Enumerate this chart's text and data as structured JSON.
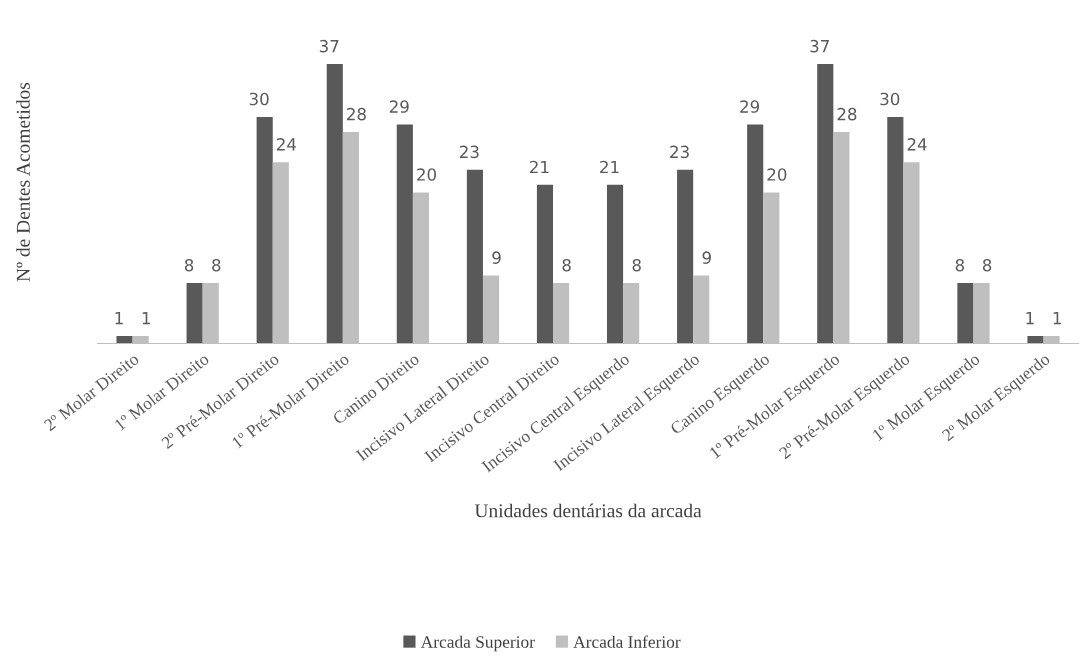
{
  "chart_data": {
    "type": "bar",
    "xlabel": "Unidades dentárias da arcada",
    "ylabel": "Nº de Dentes Acometidos",
    "categories": [
      "2º Molar Direito",
      "1º Molar Direito",
      "2º Pré-Molar Direito",
      "1º Pré-Molar Direito",
      "Canino Direito",
      "Incisivo Lateral Direito",
      "Incisivo Central Direito",
      "Incisivo Central Esquerdo",
      "Incisivo Lateral Esquerdo",
      "Canino Esquerdo",
      "1º Pré-Molar Esquerdo",
      "2º Pré-Molar Esquerdo",
      "1º Molar Esquerdo",
      "2º Molar Esquerdo"
    ],
    "series": [
      {
        "name": "Arcada Superior",
        "color": "#595959",
        "values": [
          1,
          8,
          30,
          37,
          29,
          23,
          21,
          21,
          23,
          29,
          37,
          30,
          8,
          1
        ]
      },
      {
        "name": "Arcada Inferior",
        "color": "#bfbfbf",
        "values": [
          1,
          8,
          24,
          28,
          20,
          9,
          8,
          8,
          9,
          20,
          28,
          24,
          8,
          1
        ]
      }
    ],
    "data_labels": true,
    "tick_labels": "x",
    "grid": false,
    "legend": "bottom"
  }
}
